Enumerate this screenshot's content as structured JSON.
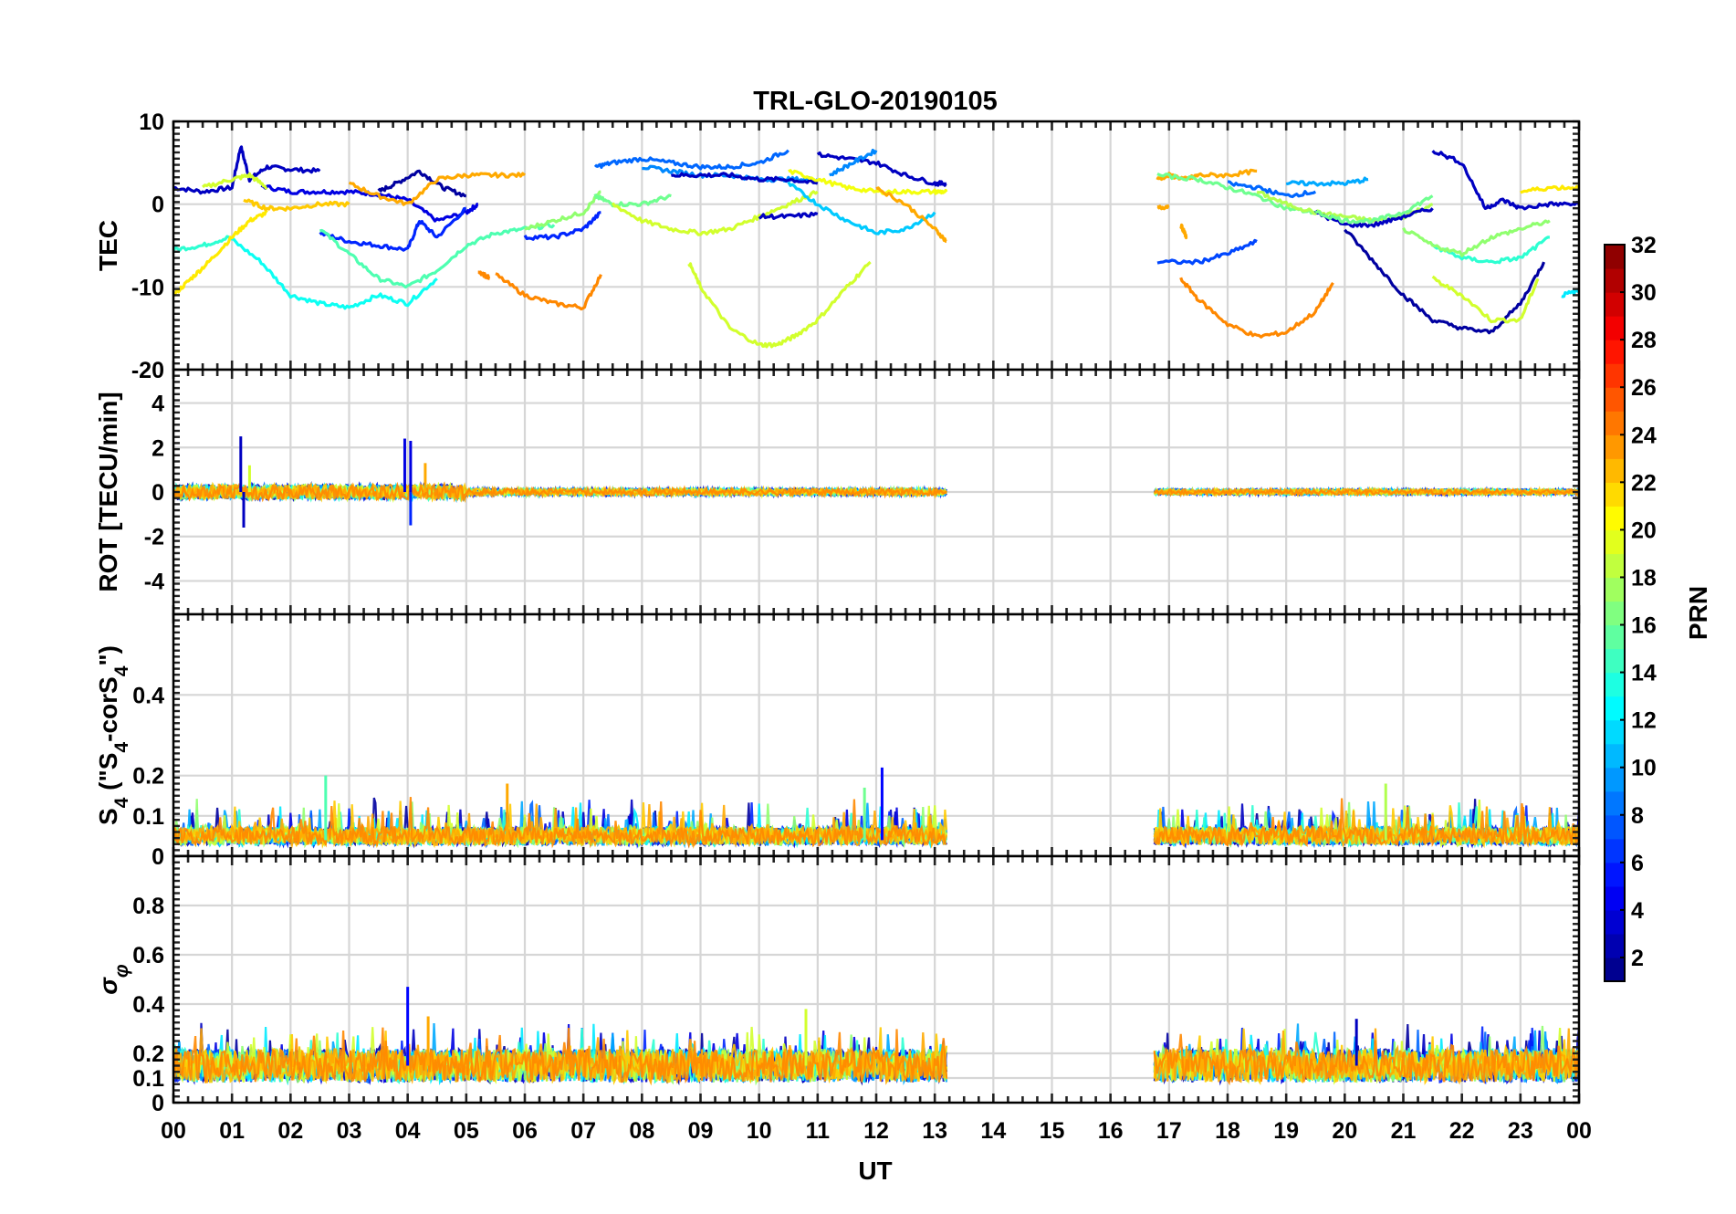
{
  "chart_data": {
    "type": "line",
    "title": "TRL-GLO-20190105",
    "xlabel": "UT",
    "x_tick_labels": [
      "00",
      "01",
      "02",
      "03",
      "04",
      "05",
      "06",
      "07",
      "08",
      "09",
      "10",
      "11",
      "12",
      "13",
      "14",
      "15",
      "16",
      "17",
      "18",
      "19",
      "20",
      "21",
      "22",
      "23",
      "00"
    ],
    "xlim": [
      0,
      24
    ],
    "colorbar": {
      "label": "PRN",
      "range": [
        1,
        32
      ],
      "tick_labels": [
        "2",
        "4",
        "6",
        "8",
        "10",
        "12",
        "14",
        "16",
        "18",
        "20",
        "22",
        "24",
        "26",
        "28",
        "30",
        "32"
      ],
      "tick_values": [
        2,
        4,
        6,
        8,
        10,
        12,
        14,
        16,
        18,
        20,
        22,
        24,
        26,
        28,
        30,
        32
      ],
      "colormap": "jet"
    },
    "data_gap": [
      13.2,
      16.75
    ],
    "panels": [
      {
        "id": "tec",
        "ylabel": "TEC",
        "ylim": [
          -20,
          10
        ],
        "y_ticks": [
          10,
          0,
          -10,
          -20
        ],
        "y_tick_labels": [
          "10",
          "0",
          "-10",
          "-20"
        ],
        "gridlines": [
          10,
          0,
          -10
        ],
        "series": [
          {
            "prn": 3,
            "x": [
              0,
              0.5,
              1,
              1.15,
              1.3,
              1.6,
              2,
              2.5
            ],
            "y": [
              2,
              1.5,
              2,
              7,
              3,
              4.5,
              4.2,
              4
            ]
          },
          {
            "prn": 4,
            "x": [
              1.5,
              2,
              2.5,
              3,
              3.5,
              4,
              4.5,
              5,
              5.2
            ],
            "y": [
              2.2,
              1.5,
              1.5,
              1.5,
              1.2,
              0.5,
              -2,
              -1,
              0
            ]
          },
          {
            "prn": 6,
            "x": [
              2.5,
              3,
              3.5,
              4,
              4.2,
              4.5,
              5
            ],
            "y": [
              -3.5,
              -4.5,
              -5,
              -5.5,
              -2,
              -4,
              -0.5
            ]
          },
          {
            "prn": 2,
            "x": [
              3.5,
              3.8,
              4.2,
              4.6,
              5
            ],
            "y": [
              1.5,
              2.5,
              4,
              2,
              1
            ]
          },
          {
            "prn": 14,
            "x": [
              0,
              0.5,
              0.95
            ],
            "y": [
              -5.5,
              -5,
              -4
            ]
          },
          {
            "prn": 13,
            "x": [
              0.95,
              1.5,
              2,
              2.5,
              3,
              3.5,
              4,
              4.5
            ],
            "y": [
              -4,
              -7,
              -11,
              -12,
              -12.5,
              -11,
              -12,
              -9
            ]
          },
          {
            "prn": 15,
            "x": [
              2.5,
              3,
              3.5,
              4,
              4.5,
              5,
              5.5,
              6,
              6.5
            ],
            "y": [
              -3,
              -6,
              -9,
              -10,
              -8,
              -5,
              -3.5,
              -3,
              -2.5
            ]
          },
          {
            "prn": 21,
            "x": [
              0,
              0.3,
              0.6,
              1,
              1.3,
              1.6
            ],
            "y": [
              -11,
              -9,
              -7,
              -4,
              -2,
              -1
            ]
          },
          {
            "prn": 19,
            "x": [
              0.5,
              1,
              1.3,
              1.6
            ],
            "y": [
              2,
              3,
              3.5,
              2
            ]
          },
          {
            "prn": 22,
            "x": [
              1.2,
              1.6,
              2,
              2.5,
              3
            ],
            "y": [
              0.5,
              -0.5,
              -0.5,
              0,
              0
            ]
          },
          {
            "prn": 23,
            "x": [
              3,
              3.5,
              4,
              4.5,
              5,
              5.5,
              6
            ],
            "y": [
              2.5,
              1,
              0,
              3,
              3.5,
              3.5,
              3.5
            ]
          },
          {
            "prn": 24,
            "x": [
              5.2,
              5.4
            ],
            "y": [
              -8,
              -9
            ]
          },
          {
            "prn": 24,
            "x": [
              5.5,
              6,
              6.5,
              7,
              7.3
            ],
            "y": [
              -8.5,
              -11,
              -12,
              -12.5,
              -8.5
            ]
          },
          {
            "prn": 6,
            "x": [
              6,
              6.5,
              7,
              7.3
            ],
            "y": [
              -4,
              -4,
              -3,
              -1
            ]
          },
          {
            "prn": 17,
            "x": [
              6,
              6.5,
              7,
              7.3
            ],
            "y": [
              -3,
              -2,
              -1,
              1.5
            ]
          },
          {
            "prn": 16,
            "x": [
              7.2,
              7.5,
              8,
              8.5
            ],
            "y": [
              1,
              0,
              0,
              1
            ]
          },
          {
            "prn": 8,
            "x": [
              7.2,
              7.5,
              8,
              8.5,
              9,
              9.5,
              10,
              10.5
            ],
            "y": [
              4.5,
              5,
              5.5,
              5,
              4.5,
              4.5,
              5,
              6.5
            ]
          },
          {
            "prn": 9,
            "x": [
              8,
              8.5,
              9,
              9.5,
              10,
              10.5,
              11
            ],
            "y": [
              4.5,
              4,
              3.5,
              3.5,
              3,
              3,
              3
            ]
          },
          {
            "prn": 3,
            "x": [
              8.5,
              9,
              9.5,
              10,
              10.5,
              11
            ],
            "y": [
              3.5,
              3.5,
              3.5,
              3,
              3,
              2.5
            ]
          },
          {
            "prn": 19,
            "x": [
              7.5,
              8,
              8.5,
              9,
              9.5,
              10,
              10.5,
              11
            ],
            "y": [
              0,
              -2,
              -3,
              -3.5,
              -3,
              -1.5,
              0,
              1.5
            ]
          },
          {
            "prn": 19,
            "x": [
              8.8,
              9,
              9.5,
              10,
              10.3,
              10.6,
              11,
              11.5,
              11.9
            ],
            "y": [
              -7,
              -10,
              -15,
              -17,
              -17,
              -16,
              -14,
              -10,
              -7
            ]
          },
          {
            "prn": 3,
            "x": [
              10,
              10.5,
              11
            ],
            "y": [
              -1.5,
              -1.5,
              -1.2
            ]
          },
          {
            "prn": 20,
            "x": [
              10.5,
              11,
              11.5,
              12,
              12.5,
              13,
              13.2
            ],
            "y": [
              4,
              3,
              2,
              1.5,
              1.5,
              1.5,
              1.5
            ]
          },
          {
            "prn": 11,
            "x": [
              10.5,
              11,
              11.5,
              12,
              12.5,
              13
            ],
            "y": [
              2.5,
              0,
              -2,
              -3.5,
              -3,
              -1
            ]
          },
          {
            "prn": 3,
            "x": [
              11,
              11.5,
              12,
              12.5,
              13,
              13.2
            ],
            "y": [
              6,
              5.5,
              5,
              3.5,
              2.5,
              2.5
            ]
          },
          {
            "prn": 9,
            "x": [
              11.2,
              11.6,
              12
            ],
            "y": [
              3.5,
              5,
              6.5
            ]
          },
          {
            "prn": 23,
            "x": [
              12,
              12.5,
              13,
              13.2
            ],
            "y": [
              2,
              0,
              -3,
              -4.5
            ]
          },
          {
            "prn": 23,
            "x": [
              16.8,
              17,
              17.3,
              17.5,
              18,
              18.5
            ],
            "y": [
              3,
              3.5,
              3,
              3.5,
              3.5,
              4
            ]
          },
          {
            "prn": 23,
            "x": [
              16.8,
              17
            ],
            "y": [
              -0.5,
              -0.2
            ]
          },
          {
            "prn": 23,
            "x": [
              17.2,
              17.3
            ],
            "y": [
              -2.5,
              -4
            ]
          },
          {
            "prn": 16,
            "x": [
              16.8,
              17.5,
              18,
              18.5,
              19,
              19.5
            ],
            "y": [
              3.5,
              3,
              2,
              1,
              -0.5,
              -1
            ]
          },
          {
            "prn": 7,
            "x": [
              16.8,
              17.5,
              18,
              18.5
            ],
            "y": [
              -7,
              -7,
              -6,
              -4.5
            ]
          },
          {
            "prn": 24,
            "x": [
              17.2,
              17.5,
              18,
              18.5,
              19,
              19.5,
              19.8
            ],
            "y": [
              -9,
              -11.5,
              -14.5,
              -16,
              -15.5,
              -13,
              -9.5
            ]
          },
          {
            "prn": 8,
            "x": [
              18,
              18.5,
              19,
              19.5
            ],
            "y": [
              2.5,
              2,
              1,
              1.5
            ]
          },
          {
            "prn": 10,
            "x": [
              19,
              19.5,
              20,
              20.4
            ],
            "y": [
              2.5,
              2.5,
              2.5,
              3
            ]
          },
          {
            "prn": 18,
            "x": [
              18.5,
              19,
              19.5,
              20,
              20.5,
              21,
              21.5
            ],
            "y": [
              1.5,
              0,
              -1,
              -1.5,
              -2,
              -1.5,
              0
            ]
          },
          {
            "prn": 3,
            "x": [
              19.5,
              20,
              20.5,
              21,
              21.5
            ],
            "y": [
              -1,
              -2.5,
              -2.5,
              -1.5,
              -0.5
            ]
          },
          {
            "prn": 16,
            "x": [
              19.5,
              20,
              20.5,
              21,
              21.5
            ],
            "y": [
              -1,
              -2,
              -2,
              -1,
              1
            ]
          },
          {
            "prn": 2,
            "x": [
              20,
              20.5,
              21,
              21.5,
              22,
              22.5,
              23,
              23.4
            ],
            "y": [
              -3,
              -7,
              -11,
              -14,
              -15,
              -15.5,
              -12,
              -7
            ]
          },
          {
            "prn": 3,
            "x": [
              21.5,
              22,
              22.4,
              22.7,
              23,
              23.5,
              24
            ],
            "y": [
              6.5,
              5,
              -0.5,
              0.5,
              -0.5,
              0,
              0
            ]
          },
          {
            "prn": 14,
            "x": [
              21.5,
              22,
              22.5,
              23,
              23.5
            ],
            "y": [
              -5,
              -6.5,
              -7,
              -6.5,
              -4
            ]
          },
          {
            "prn": 17,
            "x": [
              21,
              21.5,
              22,
              22.5,
              23,
              23.5
            ],
            "y": [
              -3,
              -5,
              -6,
              -4,
              -3,
              -2
            ]
          },
          {
            "prn": 19,
            "x": [
              21.5,
              22,
              22.5,
              23,
              23.3
            ],
            "y": [
              -9,
              -11,
              -14,
              -14,
              -9
            ]
          },
          {
            "prn": 21,
            "x": [
              23,
              23.5,
              24
            ],
            "y": [
              1.5,
              2,
              2
            ]
          },
          {
            "prn": 12,
            "x": [
              23.7,
              24
            ],
            "y": [
              -11,
              -10.5
            ]
          }
        ]
      },
      {
        "id": "rot",
        "ylabel": "ROT [TECU/min]",
        "ylim": [
          -5.5,
          5.5
        ],
        "y_ticks": [
          4,
          2,
          0,
          -2,
          -4
        ],
        "y_tick_labels": [
          "4",
          "2",
          "0",
          "-2",
          "-4"
        ],
        "gridlines": [
          4,
          2,
          0,
          -2,
          -4
        ],
        "segments": [
          {
            "start": 0,
            "end": 13.2,
            "baseline": 0,
            "noise": 0.15
          },
          {
            "start": 16.75,
            "end": 24,
            "baseline": 0,
            "noise": 0.12
          }
        ],
        "spikes": [
          {
            "x": 1.15,
            "y": 2.5,
            "prn": 3
          },
          {
            "x": 1.2,
            "y": -1.6,
            "prn": 3
          },
          {
            "x": 1.3,
            "y": 1.2,
            "prn": 19
          },
          {
            "x": 3.95,
            "y": 2.4,
            "prn": 4
          },
          {
            "x": 4.05,
            "y": 2.3,
            "prn": 4
          },
          {
            "x": 4.05,
            "y": -1.5,
            "prn": 6
          },
          {
            "x": 4.3,
            "y": 1.3,
            "prn": 23
          }
        ]
      },
      {
        "id": "s4",
        "ylabel": "S4 (\"S4-corS4\")",
        "ylim": [
          0,
          0.6
        ],
        "y_ticks": [
          0.4,
          0.2,
          0.1,
          0
        ],
        "y_tick_labels": [
          "0.4",
          "0.2",
          "0.1",
          "0"
        ],
        "gridlines": [
          0.4,
          0.2,
          0.1
        ],
        "segments": [
          {
            "start": 0,
            "end": 13.2,
            "level": 0.05,
            "noise": 0.035
          },
          {
            "start": 16.75,
            "end": 24,
            "level": 0.05,
            "noise": 0.035
          }
        ],
        "spikes": [
          {
            "x": 2.6,
            "y": 0.2,
            "prn": 15
          },
          {
            "x": 5.7,
            "y": 0.18,
            "prn": 23
          },
          {
            "x": 12.1,
            "y": 0.22,
            "prn": 5
          },
          {
            "x": 11.8,
            "y": 0.17,
            "prn": 16
          },
          {
            "x": 20.7,
            "y": 0.18,
            "prn": 18
          }
        ]
      },
      {
        "id": "sigma_phi",
        "ylabel": "σφ",
        "ylim": [
          0,
          1
        ],
        "y_ticks": [
          0.8,
          0.6,
          0.4,
          0.2,
          0.1,
          0
        ],
        "y_tick_labels": [
          "0.8",
          "0.6",
          "0.4",
          "0.2",
          "0.1",
          "0"
        ],
        "gridlines": [
          0.8,
          0.6,
          0.4,
          0.2,
          0.1
        ],
        "segments": [
          {
            "start": 0,
            "end": 13.2,
            "level": 0.15,
            "noise": 0.05
          },
          {
            "start": 16.75,
            "end": 24,
            "level": 0.15,
            "noise": 0.05
          }
        ],
        "spikes": [
          {
            "x": 4.0,
            "y": 0.47,
            "prn": 5
          },
          {
            "x": 4.35,
            "y": 0.35,
            "prn": 23
          },
          {
            "x": 10.8,
            "y": 0.38,
            "prn": 19
          },
          {
            "x": 20.2,
            "y": 0.34,
            "prn": 3
          }
        ]
      }
    ]
  }
}
